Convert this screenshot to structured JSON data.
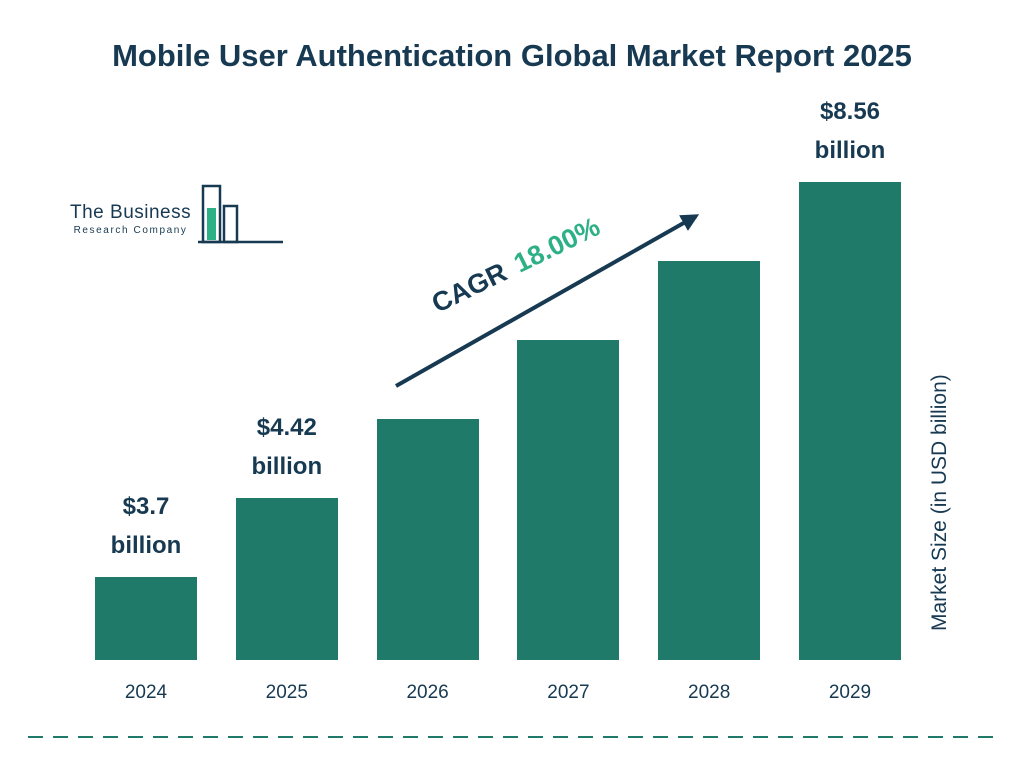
{
  "title": "Mobile User Authentication Global Market Report 2025",
  "logo": {
    "name_top": "The Business",
    "name_bottom": "Research Company"
  },
  "cagr": {
    "label": "CAGR",
    "value": "18.00%"
  },
  "y_axis_label": "Market Size (in USD billion)",
  "colors": {
    "navy": "#173a52",
    "teal": "#1f7a6a",
    "green": "#2eb086"
  },
  "chart_data": {
    "type": "bar",
    "title": "Mobile User Authentication Global Market Report 2025",
    "categories": [
      "2024",
      "2025",
      "2026",
      "2027",
      "2028",
      "2029"
    ],
    "values": [
      3.7,
      4.42,
      5.22,
      6.15,
      7.26,
      8.56
    ],
    "unit": "USD billion",
    "bar_labels": [
      {
        "amount": "$3.7",
        "unit": "billion"
      },
      {
        "amount": "$4.42",
        "unit": "billion"
      },
      null,
      null,
      null,
      {
        "amount": "$8.56",
        "unit": "billion"
      }
    ],
    "xlabel": "",
    "ylabel": "Market Size (in USD billion)",
    "cagr": "18.00%",
    "legend": false,
    "grid": false
  }
}
